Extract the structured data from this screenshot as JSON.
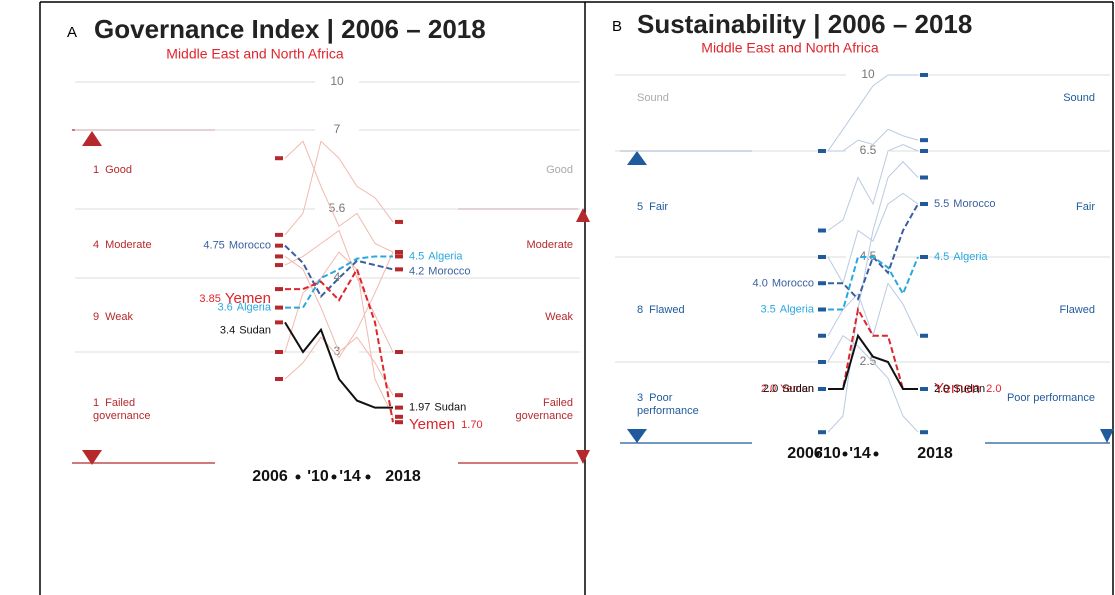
{
  "chart_data": [
    {
      "type": "line",
      "panel": "A",
      "title": "Governance Index | 2006 – 2018",
      "subtitle": "Middle East and North Africa",
      "color": "#b5292c",
      "muted": "#f2b9b0",
      "categories": [
        "2006",
        null,
        "'10",
        null,
        "'14",
        null,
        "2018"
      ],
      "ylim": [
        1,
        10
      ],
      "yticks": [
        3,
        4,
        5.6,
        7,
        10
      ],
      "grid": true,
      "bands": [
        {
          "count": 1,
          "label": "Good"
        },
        {
          "count": 4,
          "label": "Moderate"
        },
        {
          "count": 9,
          "label": "Weak"
        },
        {
          "count": 1,
          "label": "Failed governance"
        }
      ],
      "series": [
        {
          "color": "#f2b9b0",
          "values": [
            6.5,
            6.8,
            6.0,
            5.2,
            5.5,
            4.8,
            4.6
          ]
        },
        {
          "color": "#f2b9b0",
          "values": [
            5.0,
            5.5,
            6.8,
            6.5,
            6.0,
            5.8,
            5.3
          ]
        },
        {
          "color": "#f2b9b0",
          "values": [
            4.3,
            4.5,
            4.8,
            5.1,
            4.0,
            3.5,
            3.0
          ]
        },
        {
          "color": "#f2b9b0",
          "values": [
            3.0,
            3.8,
            4.0,
            4.6,
            4.2,
            2.5,
            1.8
          ]
        },
        {
          "color": "#f2b9b0",
          "values": [
            4.5,
            4.2,
            3.6,
            3.0,
            3.2,
            2.8,
            2.2
          ]
        },
        {
          "color": "#f2b9b0",
          "values": [
            2.5,
            2.8,
            3.2,
            2.9,
            3.3,
            3.8,
            4.6
          ]
        },
        {
          "name": "Morocco",
          "color": "#3a5fa0",
          "dashed": true,
          "values": [
            4.75,
            4.35,
            3.75,
            4.0,
            4.4,
            4.3,
            4.2
          ],
          "value_labels": [
            "4.75",
            null,
            null,
            null,
            null,
            null,
            "4.2"
          ]
        },
        {
          "name": "Algeria",
          "color": "#29a8e0",
          "dashed": true,
          "values": [
            3.6,
            3.6,
            4.0,
            4.2,
            4.45,
            4.5,
            4.5
          ],
          "value_labels": [
            "3.6",
            null,
            null,
            null,
            null,
            null,
            "4.5"
          ]
        },
        {
          "name": "Yemen",
          "color": "#e0242b",
          "dashed": true,
          "values": [
            3.85,
            3.85,
            3.95,
            3.7,
            4.2,
            3.4,
            1.7
          ],
          "value_labels": [
            "3.85",
            null,
            null,
            null,
            null,
            null,
            "1.70"
          ]
        },
        {
          "name": "Sudan",
          "color": "#111111",
          "values": [
            3.4,
            3.0,
            3.3,
            2.5,
            2.1,
            1.97,
            1.97
          ],
          "value_labels": [
            "3.4",
            null,
            null,
            null,
            null,
            null,
            "1.97"
          ]
        }
      ]
    },
    {
      "type": "line",
      "panel": "B",
      "title": "Sustainability | 2006 – 2018",
      "subtitle": "Middle East and North Africa",
      "color": "#1f5a9c",
      "muted": "#b9cae2",
      "categories": [
        "2006",
        null,
        "'10",
        null,
        "'14",
        null,
        "2018"
      ],
      "ylim": [
        1,
        10
      ],
      "yticks": [
        2.5,
        4.5,
        6.5,
        10
      ],
      "grid": true,
      "bands": [
        {
          "label": "Sound"
        },
        {
          "count": 5,
          "label": "Fair"
        },
        {
          "count": 8,
          "label": "Flawed"
        },
        {
          "count": 3,
          "label": "Poor performance"
        }
      ],
      "series": [
        {
          "color": "#b9cae2",
          "values": [
            6.5,
            7.5,
            8.5,
            9.5,
            10,
            10,
            10
          ]
        },
        {
          "color": "#b9cae2",
          "values": [
            6.5,
            6.5,
            7.0,
            6.8,
            7.5,
            7.2,
            7.0
          ]
        },
        {
          "color": "#b9cae2",
          "values": [
            5.0,
            5.2,
            6.0,
            5.5,
            6.5,
            6.8,
            6.5
          ]
        },
        {
          "color": "#b9cae2",
          "values": [
            4.5,
            4.0,
            5.0,
            4.8,
            5.5,
            5.7,
            5.5
          ]
        },
        {
          "color": "#b9cae2",
          "values": [
            3.0,
            3.5,
            3.8,
            3.0,
            4.0,
            3.6,
            3.0
          ]
        },
        {
          "color": "#b9cae2",
          "values": [
            2.5,
            3.0,
            2.8,
            2.5,
            2.2,
            1.5,
            1.2
          ]
        },
        {
          "color": "#b9cae2",
          "values": [
            1.2,
            1.5,
            3.5,
            5.0,
            6.0,
            6.3,
            6.0
          ]
        },
        {
          "name": "Morocco",
          "color": "#3a5fa0",
          "dashed": true,
          "values": [
            4.0,
            4.0,
            3.7,
            4.5,
            4.2,
            5.0,
            5.5
          ],
          "value_labels": [
            "4.0",
            null,
            null,
            null,
            null,
            null,
            "5.5"
          ]
        },
        {
          "name": "Algeria",
          "color": "#29a8e0",
          "dashed": true,
          "values": [
            3.5,
            3.5,
            4.5,
            4.5,
            4.3,
            3.8,
            4.5
          ],
          "value_labels": [
            "3.5",
            null,
            null,
            null,
            null,
            null,
            "4.5"
          ]
        },
        {
          "name": "Yemen",
          "color": "#e0242b",
          "dashed": true,
          "values": [
            2.0,
            2.0,
            3.5,
            3.0,
            3.0,
            2.0,
            2.0
          ],
          "value_labels": [
            "2.0",
            null,
            null,
            null,
            null,
            null,
            "2.0"
          ]
        },
        {
          "name": "Sudan",
          "color": "#111111",
          "values": [
            2.0,
            2.0,
            3.0,
            2.6,
            2.5,
            2.0,
            2.0
          ],
          "value_labels": [
            "2.0",
            null,
            null,
            null,
            null,
            null,
            "2.0"
          ]
        }
      ]
    }
  ]
}
